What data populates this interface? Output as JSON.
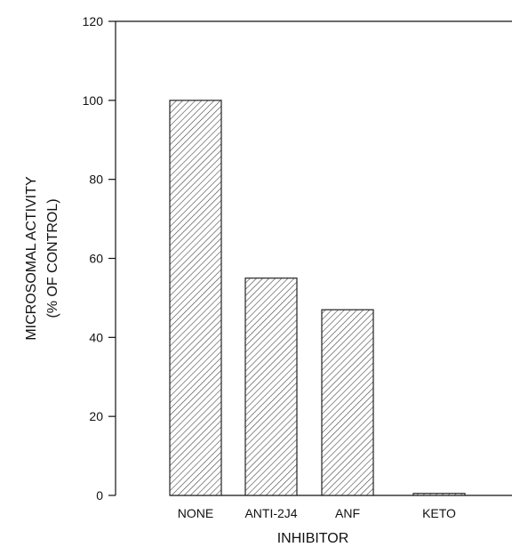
{
  "chart_data": {
    "type": "bar",
    "title": "",
    "xlabel": "INHIBITOR",
    "ylabel_line1": "MICROSOMAL ACTIVITY",
    "ylabel_line2": "(% OF CONTROL)",
    "categories": [
      "NONE",
      "ANTI-2J4",
      "ANF",
      "KETO"
    ],
    "values": [
      100,
      55,
      47,
      0.5
    ],
    "ylim": [
      0,
      120
    ],
    "yticks": [
      0,
      20,
      40,
      60,
      80,
      100,
      120
    ],
    "bar_pattern": "diagonal-hatch",
    "grid": false,
    "legend": "none",
    "colors": {
      "axis": "#111111",
      "bar_edge": "#222222",
      "bar_fill": "#ffffff",
      "hatch": "#444444"
    }
  }
}
